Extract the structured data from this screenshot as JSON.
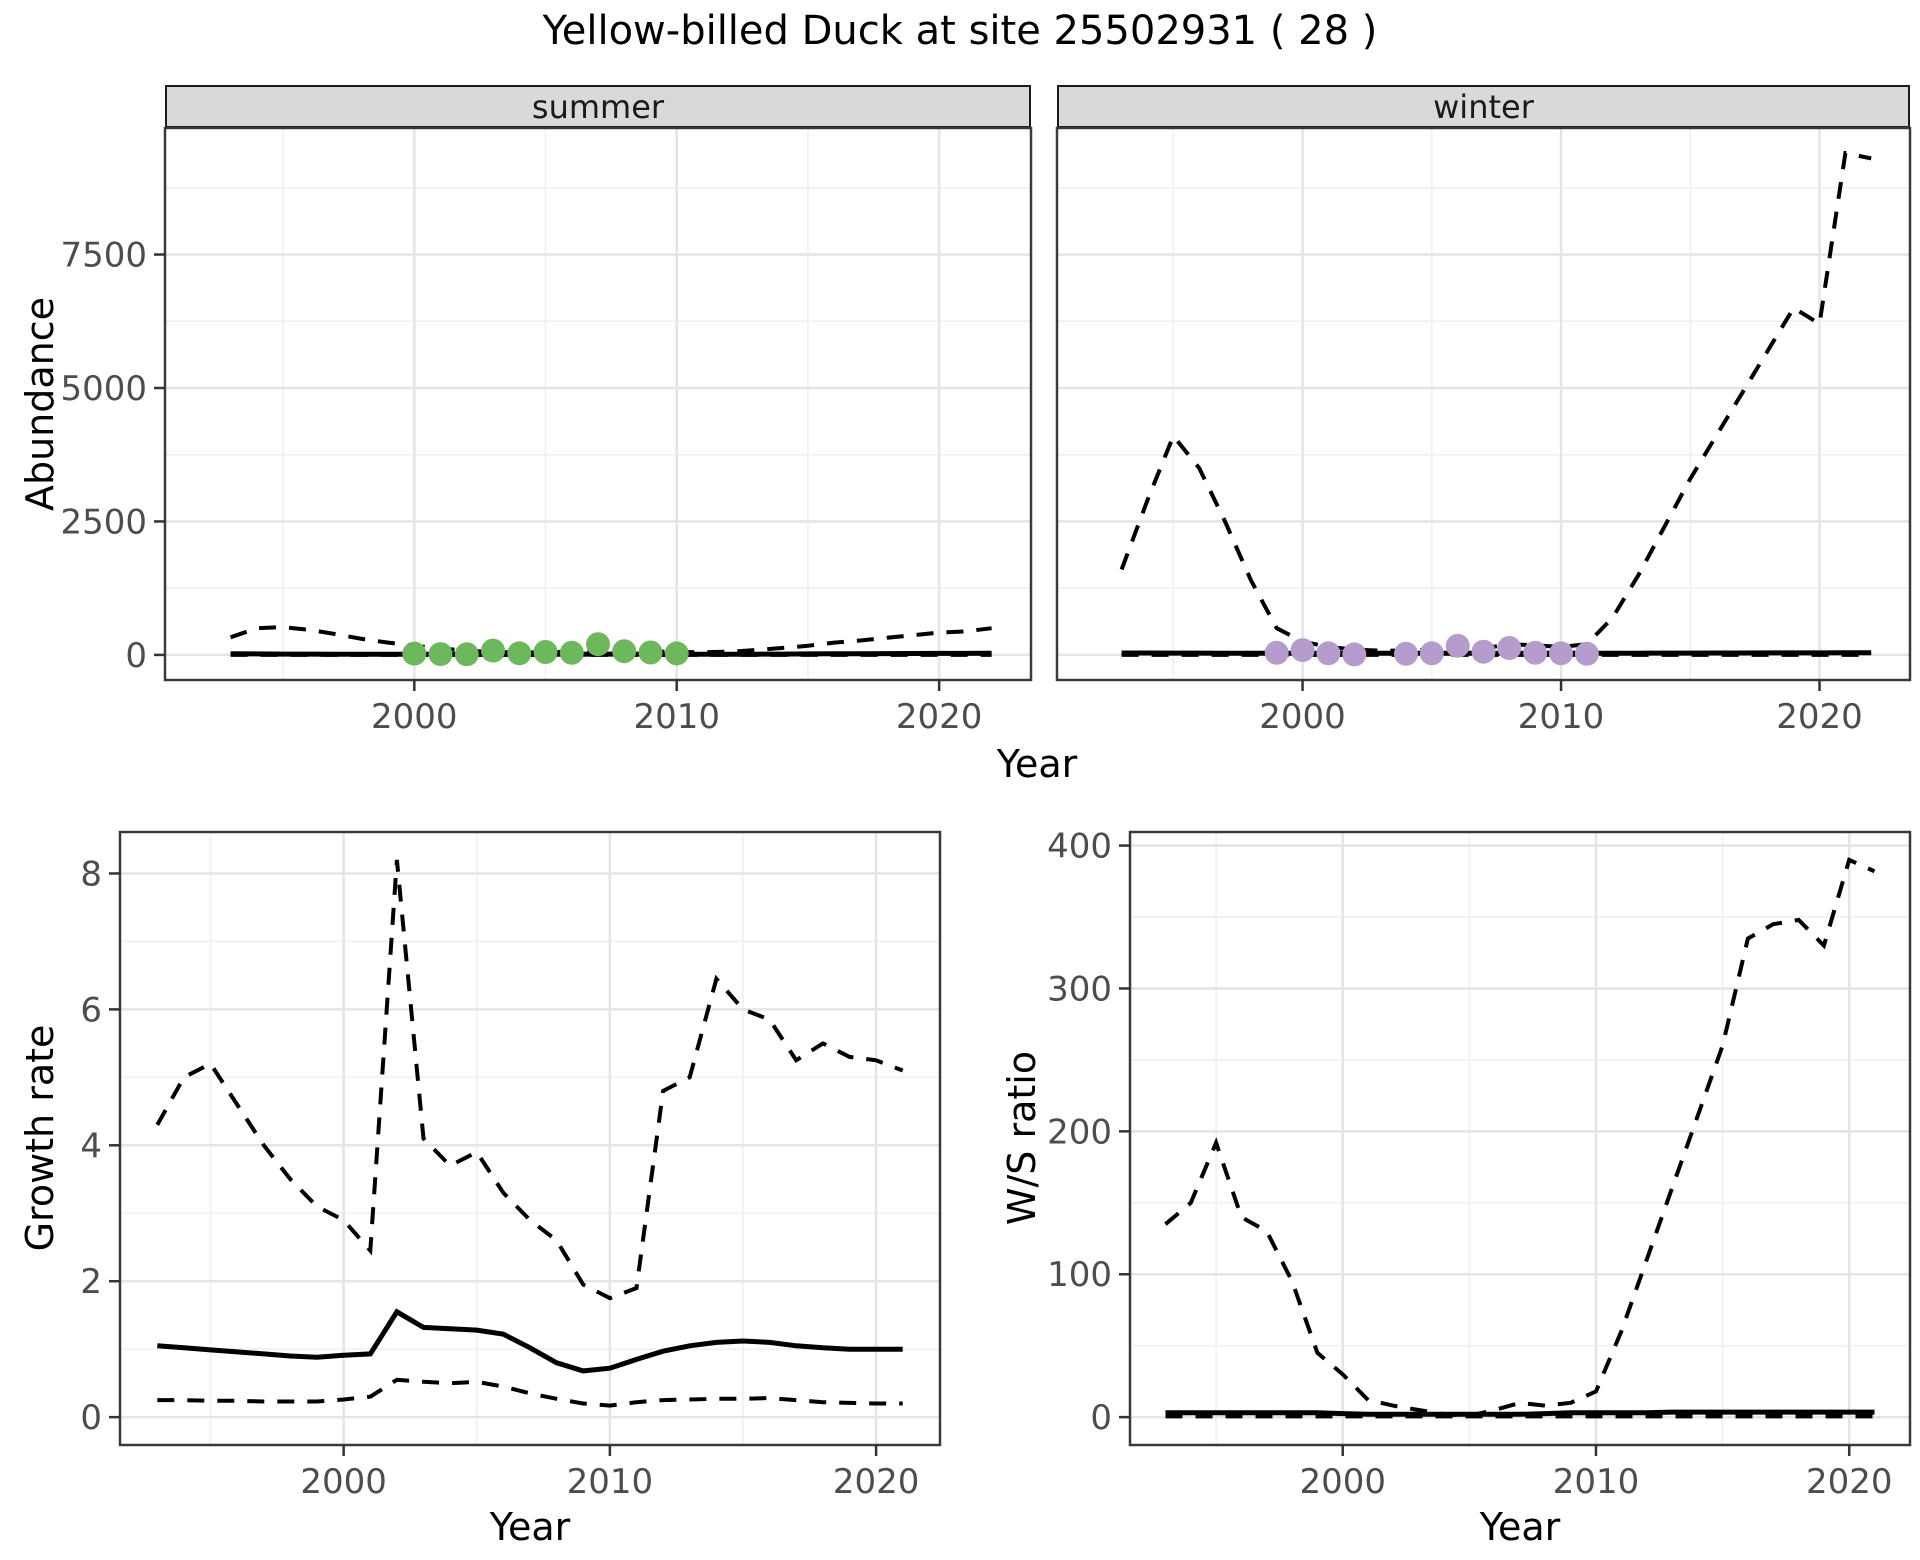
{
  "title": "Yellow-billed Duck at site 25502931 ( 28 )",
  "labels": {
    "year": "Year",
    "abundance": "Abundance",
    "growth_rate": "Growth rate",
    "ws_ratio": "W/S ratio",
    "facet_summer": "summer",
    "facet_winter": "winter"
  },
  "colors": {
    "summer_points": "#6DB85C",
    "winter_points": "#B69CCD",
    "line": "#000000",
    "strip_bg": "#D9D9D9",
    "panel_border": "#3A3A3A",
    "grid_major": "#E4E4E4",
    "grid_minor": "#F1F1F1",
    "tick_text": "#4D4D4D"
  },
  "chart_data": [
    {
      "id": "abundance-summer",
      "panel": "summer",
      "type": "line",
      "facet_label": "summer",
      "xlabel": "Year",
      "ylabel": "Abundance",
      "x": [
        1993,
        1994,
        1995,
        1996,
        1997,
        1998,
        1999,
        2000,
        2001,
        2002,
        2003,
        2004,
        2005,
        2006,
        2007,
        2008,
        2009,
        2010,
        2011,
        2012,
        2013,
        2014,
        2015,
        2016,
        2017,
        2018,
        2019,
        2020,
        2021,
        2022
      ],
      "series": [
        {
          "name": "lower_ci",
          "style": "dashed",
          "values": [
            0,
            0,
            0,
            0,
            0,
            0,
            0,
            0,
            0,
            0,
            0,
            0,
            0,
            0,
            0,
            0,
            0,
            0,
            0,
            0,
            0,
            0,
            0,
            0,
            0,
            0,
            0,
            0,
            0,
            0
          ]
        },
        {
          "name": "mean",
          "style": "solid",
          "values": [
            20,
            18,
            16,
            15,
            14,
            13,
            12,
            12,
            12,
            12,
            12,
            12,
            13,
            14,
            15,
            15,
            14,
            13,
            12,
            13,
            14,
            16,
            18,
            20,
            22,
            24,
            26,
            28,
            29,
            30
          ]
        },
        {
          "name": "upper_ci",
          "style": "dashed",
          "values": [
            330,
            500,
            520,
            470,
            390,
            300,
            230,
            170,
            120,
            80,
            55,
            45,
            50,
            60,
            75,
            80,
            65,
            55,
            50,
            60,
            90,
            130,
            170,
            230,
            270,
            320,
            370,
            420,
            440,
            500
          ]
        }
      ],
      "observed_points": {
        "name": "observed-summer",
        "color": "#6DB85C",
        "x": [
          2000,
          2001,
          2002,
          2003,
          2004,
          2005,
          2006,
          2007,
          2008,
          2009,
          2010
        ],
        "y": [
          25,
          15,
          12,
          80,
          30,
          55,
          40,
          200,
          70,
          45,
          28
        ]
      },
      "xlim": [
        1990.5,
        2023.5
      ],
      "ylim": [
        -470,
        9870
      ],
      "xticks": [
        2000,
        2010,
        2020
      ],
      "yticks": [
        0,
        2500,
        5000,
        7500
      ],
      "xticks_minor": [
        1995,
        2005,
        2015
      ],
      "yticks_minor": [
        1250,
        3750,
        6250,
        8750
      ],
      "show_y_axis": true
    },
    {
      "id": "abundance-winter",
      "panel": "winter",
      "type": "line",
      "facet_label": "winter",
      "xlabel": "Year",
      "ylabel": "Abundance",
      "x": [
        1993,
        1994,
        1995,
        1996,
        1997,
        1998,
        1999,
        2000,
        2001,
        2002,
        2003,
        2004,
        2005,
        2006,
        2007,
        2008,
        2009,
        2010,
        2011,
        2012,
        2013,
        2014,
        2015,
        2016,
        2017,
        2018,
        2019,
        2020,
        2021,
        2022
      ],
      "series": [
        {
          "name": "lower_ci",
          "style": "dashed",
          "values": [
            0,
            0,
            0,
            0,
            0,
            0,
            0,
            0,
            0,
            0,
            0,
            0,
            0,
            0,
            0,
            0,
            0,
            0,
            0,
            0,
            0,
            0,
            0,
            0,
            0,
            0,
            0,
            0,
            0,
            0
          ]
        },
        {
          "name": "mean",
          "style": "solid",
          "values": [
            35,
            35,
            34,
            33,
            32,
            31,
            30,
            30,
            30,
            30,
            30,
            30,
            30,
            31,
            31,
            32,
            31,
            30,
            30,
            31,
            32,
            33,
            34,
            35,
            36,
            37,
            38,
            38,
            39,
            40
          ]
        },
        {
          "name": "upper_ci",
          "style": "dashed",
          "values": [
            1600,
            2900,
            4100,
            3500,
            2500,
            1400,
            500,
            250,
            150,
            100,
            80,
            80,
            100,
            150,
            120,
            200,
            180,
            150,
            200,
            700,
            1500,
            2400,
            3300,
            4100,
            4900,
            5700,
            6500,
            6200,
            9400,
            9300
          ]
        }
      ],
      "observed_points": {
        "name": "observed-winter",
        "color": "#B69CCD",
        "x": [
          1999,
          2000,
          2001,
          2002,
          2004,
          2005,
          2006,
          2007,
          2008,
          2009,
          2010,
          2011
        ],
        "y": [
          40,
          90,
          30,
          10,
          20,
          30,
          170,
          60,
          130,
          40,
          30,
          20
        ]
      },
      "xlim": [
        1990.5,
        2023.5
      ],
      "ylim": [
        -470,
        9870
      ],
      "xticks": [
        2000,
        2010,
        2020
      ],
      "yticks": [
        0,
        2500,
        5000,
        7500
      ],
      "xticks_minor": [
        1995,
        2005,
        2015
      ],
      "yticks_minor": [
        1250,
        3750,
        6250,
        8750
      ],
      "show_y_axis": false
    },
    {
      "id": "growth-rate",
      "panel": "growth",
      "type": "line",
      "xlabel": "Year",
      "ylabel": "Growth rate",
      "x": [
        1993,
        1994,
        1995,
        1996,
        1997,
        1998,
        1999,
        2000,
        2001,
        2002,
        2003,
        2004,
        2005,
        2006,
        2007,
        2008,
        2009,
        2010,
        2011,
        2012,
        2013,
        2014,
        2015,
        2016,
        2017,
        2018,
        2019,
        2020,
        2021
      ],
      "series": [
        {
          "name": "lower_ci",
          "style": "dashed",
          "values": [
            0.25,
            0.25,
            0.24,
            0.24,
            0.23,
            0.23,
            0.23,
            0.26,
            0.3,
            0.55,
            0.52,
            0.5,
            0.52,
            0.45,
            0.35,
            0.27,
            0.2,
            0.17,
            0.22,
            0.25,
            0.26,
            0.27,
            0.27,
            0.28,
            0.25,
            0.22,
            0.21,
            0.2,
            0.2
          ]
        },
        {
          "name": "mean",
          "style": "solid",
          "values": [
            1.05,
            1.02,
            0.99,
            0.96,
            0.93,
            0.9,
            0.88,
            0.91,
            0.93,
            1.55,
            1.32,
            1.3,
            1.28,
            1.22,
            1.02,
            0.8,
            0.68,
            0.72,
            0.85,
            0.97,
            1.05,
            1.1,
            1.12,
            1.1,
            1.05,
            1.02,
            1.0,
            1.0,
            1.0
          ]
        },
        {
          "name": "upper_ci",
          "style": "dashed",
          "values": [
            4.3,
            5.0,
            5.2,
            4.6,
            4.0,
            3.5,
            3.1,
            2.9,
            2.45,
            8.2,
            4.1,
            3.7,
            3.9,
            3.3,
            2.9,
            2.6,
            1.95,
            1.75,
            1.9,
            4.8,
            5.0,
            6.45,
            6.0,
            5.85,
            5.25,
            5.5,
            5.3,
            5.25,
            5.1
          ]
        }
      ],
      "xlim": [
        1991.6,
        2022.4
      ],
      "ylim": [
        -0.41,
        8.61
      ],
      "xticks": [
        2000,
        2010,
        2020
      ],
      "yticks": [
        0,
        2,
        4,
        6,
        8
      ],
      "xticks_minor": [
        1995,
        2005,
        2015
      ],
      "yticks_minor": [
        1,
        3,
        5,
        7
      ],
      "show_y_axis": true
    },
    {
      "id": "ws-ratio",
      "panel": "ws",
      "type": "line",
      "xlabel": "Year",
      "ylabel": "W/S ratio",
      "x": [
        1993,
        1994,
        1995,
        1996,
        1997,
        1998,
        1999,
        2000,
        2001,
        2002,
        2003,
        2004,
        2005,
        2006,
        2007,
        2008,
        2009,
        2010,
        2011,
        2012,
        2013,
        2014,
        2015,
        2016,
        2017,
        2018,
        2019,
        2020,
        2021
      ],
      "series": [
        {
          "name": "lower_ci",
          "style": "dashed",
          "values": [
            0.5,
            0.5,
            0.5,
            0.5,
            0.5,
            0.5,
            0.5,
            0.5,
            0.5,
            0.5,
            0.5,
            0.5,
            0.5,
            0.5,
            0.5,
            0.5,
            0.5,
            0.5,
            0.5,
            0.5,
            0.5,
            0.5,
            0.5,
            0.5,
            0.5,
            0.5,
            0.5,
            0.5,
            0.5
          ]
        },
        {
          "name": "mean",
          "style": "solid",
          "values": [
            3,
            3,
            3,
            3,
            3,
            3,
            3,
            2.5,
            2,
            2,
            2,
            2,
            2,
            2,
            2,
            2.5,
            3,
            3,
            3,
            3,
            3.5,
            3.5,
            3.5,
            3.5,
            3.5,
            3.5,
            3.5,
            3.5,
            3.5
          ]
        },
        {
          "name": "upper_ci",
          "style": "dashed",
          "values": [
            135,
            150,
            192,
            140,
            130,
            95,
            45,
            30,
            12,
            8,
            5,
            2,
            1,
            5,
            10,
            8,
            10,
            18,
            60,
            110,
            160,
            210,
            260,
            335,
            345,
            348,
            330,
            390,
            382
          ]
        }
      ],
      "xlim": [
        1991.6,
        2022.4
      ],
      "ylim": [
        -19.5,
        409.5
      ],
      "xticks": [
        2000,
        2010,
        2020
      ],
      "yticks": [
        0,
        100,
        200,
        300,
        400
      ],
      "xticks_minor": [
        1995,
        2005,
        2015
      ],
      "yticks_minor": [
        50,
        150,
        250,
        350
      ],
      "show_y_axis": true
    }
  ]
}
